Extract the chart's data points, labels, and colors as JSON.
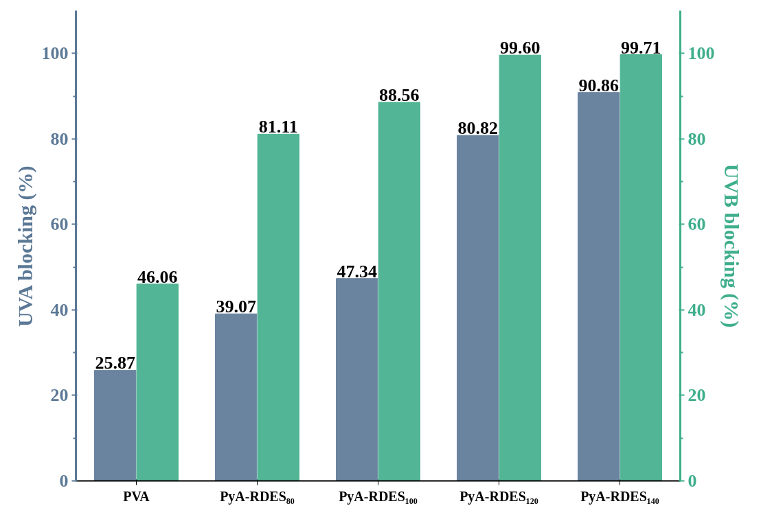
{
  "chart_data": {
    "type": "bar",
    "categories": [
      "PVA",
      "PyA-RDES₈₀",
      "PyA-RDES₁₀₀",
      "PyA-RDES₁₂₀",
      "PyA-RDES₁₄₀"
    ],
    "ylabel": "UVA blocking (%)",
    "y2label": "UVB blocking (%)",
    "ylim": [
      0,
      110
    ],
    "yticks": [
      0,
      20,
      40,
      60,
      80,
      100
    ],
    "y2lim": [
      0,
      110
    ],
    "y2ticks": [
      0,
      20,
      40,
      60,
      80,
      100
    ],
    "grid": false,
    "series": [
      {
        "color": "#6a84a0",
        "values": [
          25.87,
          39.07,
          47.34,
          80.82,
          90.86
        ],
        "value_labels": [
          "25.87",
          "39.07",
          "47.34",
          "80.82",
          "90.86"
        ]
      },
      {
        "color": "#52b595",
        "axis": "y2",
        "values": [
          46.06,
          81.11,
          88.56,
          99.6,
          99.71
        ],
        "value_labels": [
          "46.06",
          "81.11",
          "88.56",
          "99.60",
          "99.71"
        ]
      }
    ]
  }
}
